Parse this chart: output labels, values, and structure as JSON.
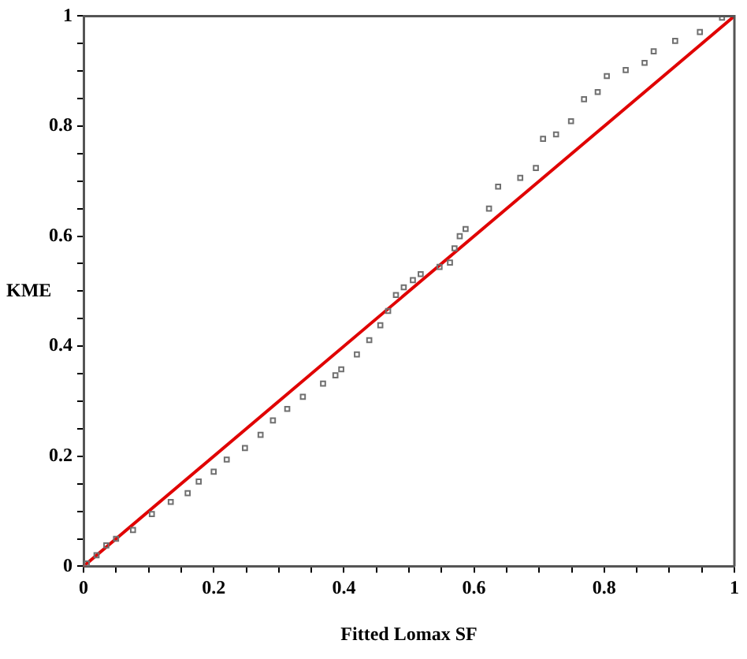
{
  "chart_data": {
    "type": "scatter",
    "xlabel": "Fitted Lomax SF",
    "ylabel": "KME",
    "xlim": [
      0,
      1
    ],
    "ylim": [
      0,
      1
    ],
    "xticks": [
      0,
      {
        "value": 0.05,
        "label": null
      },
      {
        "value": 0.1,
        "label": null
      },
      {
        "value": 0.15,
        "label": null
      },
      0.2,
      {
        "value": 0.25,
        "label": null
      },
      {
        "value": 0.3,
        "label": null
      },
      {
        "value": 0.35,
        "label": null
      },
      0.4,
      {
        "value": 0.45,
        "label": null
      },
      {
        "value": 0.5,
        "label": null
      },
      {
        "value": 0.55,
        "label": null
      },
      0.6,
      {
        "value": 0.65,
        "label": null
      },
      {
        "value": 0.7,
        "label": null
      },
      {
        "value": 0.75,
        "label": null
      },
      0.8,
      {
        "value": 0.85,
        "label": null
      },
      {
        "value": 0.9,
        "label": null
      },
      {
        "value": 0.95,
        "label": null
      },
      1
    ],
    "yticks": [
      0,
      {
        "value": 0.05,
        "label": null
      },
      {
        "value": 0.1,
        "label": null
      },
      {
        "value": 0.15,
        "label": null
      },
      0.2,
      {
        "value": 0.25,
        "label": null
      },
      {
        "value": 0.3,
        "label": null
      },
      {
        "value": 0.35,
        "label": null
      },
      0.4,
      {
        "value": 0.45,
        "label": null
      },
      {
        "value": 0.5,
        "label": null
      },
      {
        "value": 0.55,
        "label": null
      },
      0.6,
      {
        "value": 0.65,
        "label": null
      },
      {
        "value": 0.7,
        "label": null
      },
      {
        "value": 0.75,
        "label": null
      },
      0.8,
      {
        "value": 0.85,
        "label": null
      },
      {
        "value": 0.9,
        "label": null
      },
      {
        "value": 0.95,
        "label": null
      },
      1
    ],
    "grid": false,
    "legend": false,
    "marker": "square",
    "series": [
      {
        "color": "#707070",
        "x": [
          0.005,
          0.02,
          0.035,
          0.05,
          0.076,
          0.105,
          0.134,
          0.16,
          0.177,
          0.2,
          0.22,
          0.248,
          0.272,
          0.291,
          0.313,
          0.337,
          0.368,
          0.387,
          0.396,
          0.42,
          0.439,
          0.456,
          0.468,
          0.48,
          0.492,
          0.506,
          0.518,
          0.547,
          0.563,
          0.57,
          0.578,
          0.587,
          0.623,
          0.637,
          0.671,
          0.695,
          0.706,
          0.726,
          0.749,
          0.769,
          0.79,
          0.804,
          0.833,
          0.862,
          0.876,
          0.909,
          0.947,
          0.981
        ],
        "values": [
          0.005,
          0.02,
          0.038,
          0.05,
          0.066,
          0.095,
          0.117,
          0.133,
          0.154,
          0.172,
          0.194,
          0.215,
          0.239,
          0.265,
          0.286,
          0.308,
          0.332,
          0.347,
          0.358,
          0.385,
          0.411,
          0.438,
          0.464,
          0.493,
          0.507,
          0.52,
          0.531,
          0.544,
          0.552,
          0.578,
          0.6,
          0.613,
          0.65,
          0.69,
          0.706,
          0.724,
          0.777,
          0.785,
          0.809,
          0.849,
          0.862,
          0.891,
          0.902,
          0.915,
          0.936,
          0.955,
          0.971,
          0.997
        ]
      },
      {
        "type": "line",
        "color": "#e00000",
        "marker": "none",
        "line_style": "solid",
        "x": [
          0,
          1
        ],
        "values": [
          0,
          1
        ]
      }
    ]
  }
}
